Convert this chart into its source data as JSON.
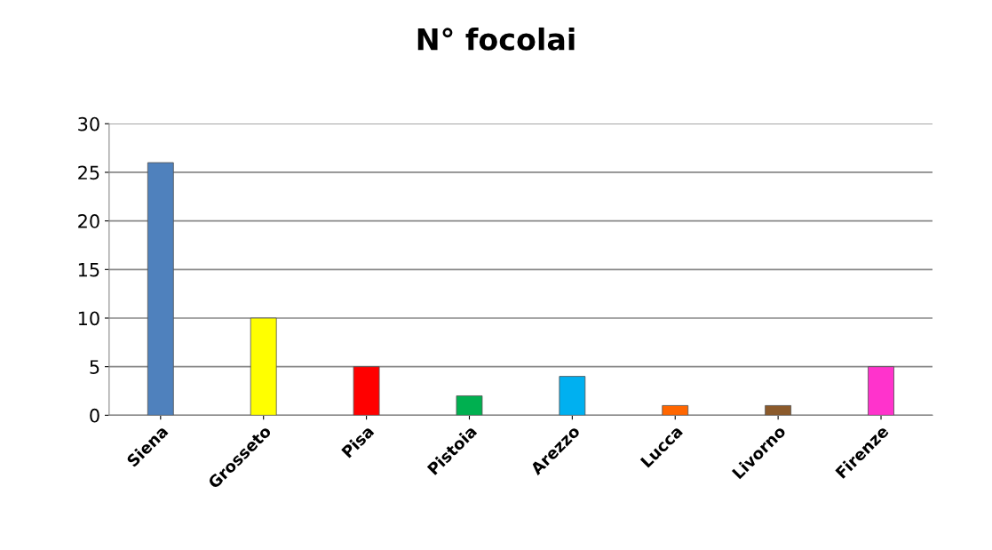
{
  "chart_data": {
    "type": "bar",
    "title": "N° focolai",
    "categories": [
      "Siena",
      "Grosseto",
      "Pisa",
      "Pistoia",
      "Arezzo",
      "Lucca",
      "Livorno",
      "Firenze"
    ],
    "values": [
      26,
      10,
      5,
      2,
      4,
      1,
      1,
      5
    ],
    "colors": [
      "#4f81bd",
      "#ffff00",
      "#ff0000",
      "#00b050",
      "#00b0f0",
      "#ff6600",
      "#8b5a2b",
      "#ff33cc"
    ],
    "ylim": [
      0,
      30
    ],
    "yticks": [
      0,
      5,
      10,
      15,
      20,
      25,
      30
    ],
    "grid": "y"
  }
}
